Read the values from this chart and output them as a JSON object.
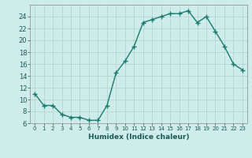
{
  "x": [
    0,
    1,
    2,
    3,
    4,
    5,
    6,
    7,
    8,
    9,
    10,
    11,
    12,
    13,
    14,
    15,
    16,
    17,
    18,
    19,
    20,
    21,
    22,
    23
  ],
  "y": [
    11,
    9,
    9,
    7.5,
    7,
    7,
    6.5,
    6.5,
    9,
    14.5,
    16.5,
    19,
    23,
    23.5,
    24,
    24.5,
    24.5,
    25,
    23,
    24,
    21.5,
    19,
    16,
    15
  ],
  "line_color": "#1a7a6e",
  "bg_color": "#ceecea",
  "grid_color_major": "#b0d0ce",
  "grid_color_minor": "#c8e8e6",
  "xlabel": "Humidex (Indice chaleur)",
  "ylim": [
    6,
    26
  ],
  "xlim_min": -0.5,
  "xlim_max": 23.5,
  "yticks": [
    6,
    8,
    10,
    12,
    14,
    16,
    18,
    20,
    22,
    24
  ],
  "xticks": [
    0,
    1,
    2,
    3,
    4,
    5,
    6,
    7,
    8,
    9,
    10,
    11,
    12,
    13,
    14,
    15,
    16,
    17,
    18,
    19,
    20,
    21,
    22,
    23
  ],
  "xtick_labels": [
    "0",
    "1",
    "2",
    "3",
    "4",
    "5",
    "6",
    "7",
    "8",
    "9",
    "10",
    "11",
    "12",
    "13",
    "14",
    "15",
    "16",
    "17",
    "18",
    "19",
    "20",
    "21",
    "22",
    "23"
  ],
  "marker": "+",
  "markersize": 4,
  "linewidth": 1.0
}
